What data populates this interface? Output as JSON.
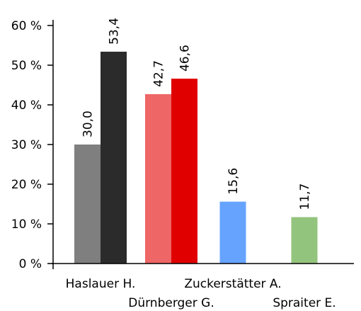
{
  "chart_data": {
    "type": "bar",
    "categories": [
      "Haslauer H.",
      "Dürnberger G.",
      "Zuckerstätter A.",
      "Spraiter E."
    ],
    "category_label_rows": [
      "upper",
      "lower",
      "upper",
      "lower"
    ],
    "y_ticks": [
      "0 %",
      "10 %",
      "20 %",
      "30 %",
      "40 %",
      "50 %",
      "60 %"
    ],
    "ylim": [
      0,
      60
    ],
    "grid": false,
    "legend": "none",
    "bars": [
      {
        "category": 0,
        "slot": 0,
        "value": 30.0,
        "label": "30,0",
        "color": "#7f7f7f"
      },
      {
        "category": 0,
        "slot": 1,
        "value": 53.4,
        "label": "53,4",
        "color": "#2b2b2b"
      },
      {
        "category": 1,
        "slot": 0,
        "value": 42.7,
        "label": "42,7",
        "color": "#ee6666"
      },
      {
        "category": 1,
        "slot": 1,
        "value": 46.6,
        "label": "46,6",
        "color": "#e00000"
      },
      {
        "category": 2,
        "slot": 0.5,
        "value": 15.6,
        "label": "15,6",
        "color": "#66a3ff"
      },
      {
        "category": 3,
        "slot": 0.5,
        "value": 11.7,
        "label": "11,7",
        "color": "#93c47d"
      }
    ]
  }
}
